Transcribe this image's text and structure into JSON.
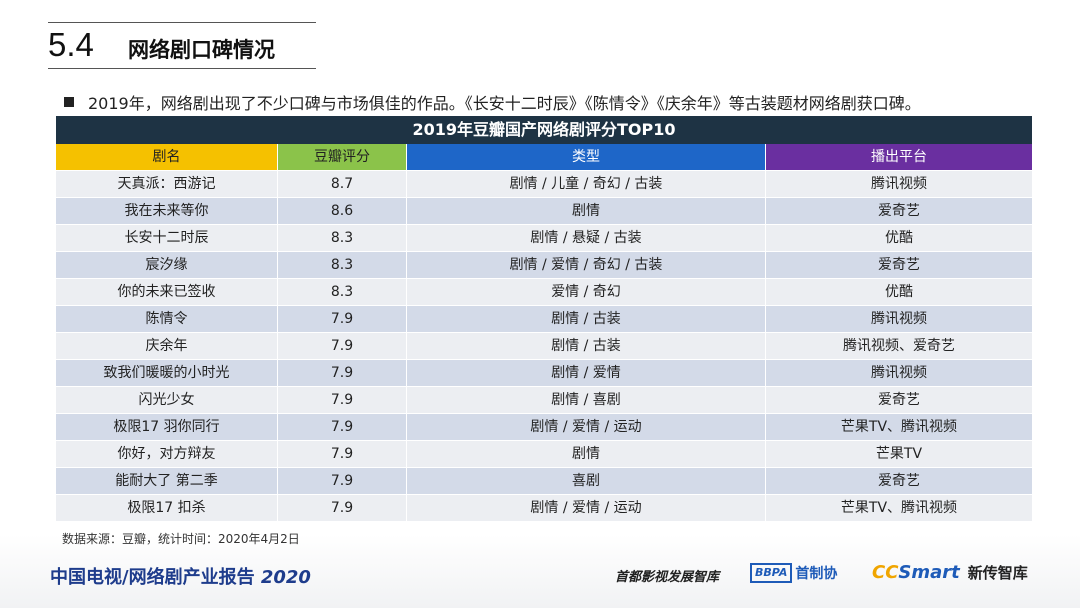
{
  "header": {
    "section_number": "5.4",
    "section_title": "网络剧口碑情况"
  },
  "intro": {
    "text": "2019年，网络剧出现了不少口碑与市场俱佳的作品。《长安十二时辰》《陈情令》《庆余年》等古装题材网络剧获口碑。"
  },
  "table": {
    "title": "2019年豆瓣国产网络剧评分TOP10",
    "headers": [
      "剧名",
      "豆瓣评分",
      "类型",
      "播出平台"
    ],
    "colors": {
      "name": "#f5c100",
      "score": "#8bc34a",
      "genre": "#1e66c8",
      "platform": "#6a2fa0"
    },
    "rows": [
      [
        "天真派：西游记",
        "8.7",
        "剧情 / 儿童 / 奇幻 / 古装",
        "腾讯视频"
      ],
      [
        "我在未来等你",
        "8.6",
        "剧情",
        "爱奇艺"
      ],
      [
        "长安十二时辰",
        "8.3",
        "剧情 / 悬疑 / 古装",
        "优酷"
      ],
      [
        "宸汐缘",
        "8.3",
        "剧情 / 爱情 / 奇幻 / 古装",
        "爱奇艺"
      ],
      [
        "你的未来已签收",
        "8.3",
        "爱情 / 奇幻",
        "优酷"
      ],
      [
        "陈情令",
        "7.9",
        "剧情 / 古装",
        "腾讯视频"
      ],
      [
        "庆余年",
        "7.9",
        "剧情 / 古装",
        "腾讯视频、爱奇艺"
      ],
      [
        "致我们暖暖的小时光",
        "7.9",
        "剧情 / 爱情",
        "腾讯视频"
      ],
      [
        "闪光少女",
        "7.9",
        "剧情 / 喜剧",
        "爱奇艺"
      ],
      [
        "极限17 羽你同行",
        "7.9",
        "剧情 / 爱情 / 运动",
        "芒果TV、腾讯视频"
      ],
      [
        "你好，对方辩友",
        "7.9",
        "剧情",
        "芒果TV"
      ],
      [
        "能耐大了 第二季",
        "7.9",
        "喜剧",
        "爱奇艺"
      ],
      [
        "极限17 扣杀",
        "7.9",
        "剧情 / 爱情 / 运动",
        "芒果TV、腾讯视频"
      ]
    ]
  },
  "source": "数据来源：豆瓣，统计时间：2020年4月2日",
  "footer": {
    "report_title": "中国电视/网络剧产业报告",
    "report_year": "2020",
    "logo1": "首都影视发展智库",
    "logo2_mark": "BBPA",
    "logo2_text": "首制协",
    "logo3_cc": "CC",
    "logo3_smart": "Smart",
    "logo3_text": "新传智库"
  }
}
